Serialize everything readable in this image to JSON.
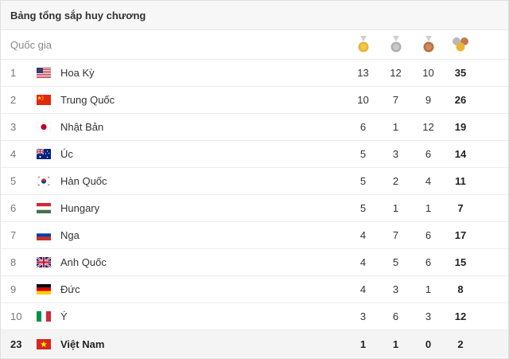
{
  "title": "Bảng tổng sắp huy chương",
  "header": {
    "country_label": "Quốc gia",
    "icons": [
      "gold-medal-icon",
      "silver-medal-icon",
      "bronze-medal-icon",
      "total-medals-icon"
    ]
  },
  "colors": {
    "gold": "#e8b634",
    "silver": "#b9b9b9",
    "bronze": "#c07a4e"
  },
  "rows": [
    {
      "rank": "1",
      "flag": "flag-usa",
      "country": "Hoa Kỳ",
      "gold": "13",
      "silver": "12",
      "bronze": "10",
      "total": "35"
    },
    {
      "rank": "2",
      "flag": "flag-china",
      "country": "Trung Quốc",
      "gold": "10",
      "silver": "7",
      "bronze": "9",
      "total": "26"
    },
    {
      "rank": "3",
      "flag": "flag-japan",
      "country": "Nhật Bản",
      "gold": "6",
      "silver": "1",
      "bronze": "12",
      "total": "19"
    },
    {
      "rank": "4",
      "flag": "flag-australia",
      "country": "Úc",
      "gold": "5",
      "silver": "3",
      "bronze": "6",
      "total": "14"
    },
    {
      "rank": "5",
      "flag": "flag-south-korea",
      "country": "Hàn Quốc",
      "gold": "5",
      "silver": "2",
      "bronze": "4",
      "total": "11"
    },
    {
      "rank": "6",
      "flag": "flag-hungary",
      "country": "Hungary",
      "gold": "5",
      "silver": "1",
      "bronze": "1",
      "total": "7"
    },
    {
      "rank": "7",
      "flag": "flag-russia",
      "country": "Nga",
      "gold": "4",
      "silver": "7",
      "bronze": "6",
      "total": "17"
    },
    {
      "rank": "8",
      "flag": "flag-uk",
      "country": "Anh Quốc",
      "gold": "4",
      "silver": "5",
      "bronze": "6",
      "total": "15"
    },
    {
      "rank": "9",
      "flag": "flag-germany",
      "country": "Đức",
      "gold": "4",
      "silver": "3",
      "bronze": "1",
      "total": "8"
    },
    {
      "rank": "10",
      "flag": "flag-italy",
      "country": "Ý",
      "gold": "3",
      "silver": "6",
      "bronze": "3",
      "total": "12"
    }
  ],
  "highlight": {
    "rank": "23",
    "flag": "flag-vietnam",
    "country": "Việt Nam",
    "gold": "1",
    "silver": "1",
    "bronze": "0",
    "total": "2"
  }
}
